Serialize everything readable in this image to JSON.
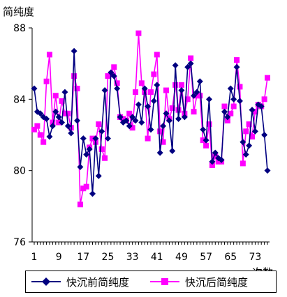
{
  "chart_data": {
    "type": "line",
    "ylabel": "简纯度",
    "xlabel": "次数",
    "ylim": [
      76,
      88
    ],
    "yticks": [
      76,
      80,
      84,
      88
    ],
    "xticks": [
      1,
      9,
      17,
      25,
      33,
      41,
      49,
      57,
      65,
      73
    ],
    "grid": false,
    "legend_position": "bottom",
    "x": [
      1,
      2,
      3,
      4,
      5,
      6,
      7,
      8,
      9,
      10,
      11,
      12,
      13,
      14,
      15,
      16,
      17,
      18,
      19,
      20,
      21,
      22,
      23,
      24,
      25,
      26,
      27,
      28,
      29,
      30,
      31,
      32,
      33,
      34,
      35,
      36,
      37,
      38,
      39,
      40,
      41,
      42,
      43,
      44,
      45,
      46,
      47,
      48,
      49,
      50,
      51,
      52,
      53,
      54,
      55,
      56,
      57,
      58,
      59,
      60,
      61,
      62,
      63,
      64,
      65,
      66,
      67,
      68,
      69,
      70,
      71,
      72,
      73,
      74,
      75,
      76,
      77
    ],
    "series": [
      {
        "name": "快沉前简纯度",
        "color": "#000080",
        "marker": "diamond",
        "values": [
          84.6,
          83.3,
          83.2,
          83.0,
          82.9,
          81.9,
          82.5,
          83.3,
          83.0,
          82.7,
          84.4,
          82.5,
          82.1,
          86.7,
          82.8,
          80.2,
          81.8,
          80.9,
          81.2,
          78.7,
          81.8,
          79.7,
          82.2,
          84.5,
          81.8,
          85.5,
          85.3,
          84.6,
          83.0,
          82.7,
          82.8,
          82.5,
          83.0,
          82.8,
          83.7,
          82.7,
          84.6,
          83.6,
          82.3,
          83.9,
          84.8,
          81.0,
          82.5,
          83.2,
          82.8,
          81.1,
          85.9,
          82.9,
          84.5,
          83.0,
          85.8,
          86.0,
          84.2,
          84.4,
          85.0,
          82.3,
          81.7,
          84.0,
          80.5,
          81.0,
          80.7,
          80.6,
          83.3,
          83.0,
          84.6,
          84.0,
          85.8,
          83.9,
          81.6,
          80.9,
          81.4,
          83.4,
          82.2,
          83.7,
          83.6,
          82.0,
          80.0
        ]
      },
      {
        "name": "快沉后简纯度",
        "color": "#FF00FF",
        "marker": "square",
        "values": [
          82.3,
          82.5,
          82.0,
          81.6,
          85.0,
          86.5,
          82.7,
          84.2,
          82.7,
          83.9,
          83.2,
          83.2,
          82.4,
          85.3,
          84.6,
          78.1,
          79.0,
          79.1,
          81.3,
          81.8,
          81.6,
          82.6,
          81.2,
          80.7,
          85.3,
          85.4,
          85.8,
          84.9,
          83.0,
          82.9,
          82.8,
          83.2,
          82.4,
          84.4,
          87.7,
          84.9,
          84.4,
          81.8,
          84.4,
          85.4,
          86.5,
          82.2,
          81.6,
          84.5,
          82.9,
          83.5,
          84.8,
          83.4,
          84.8,
          83.2,
          84.0,
          86.3,
          83.3,
          84.2,
          84.2,
          81.7,
          81.4,
          82.6,
          80.3,
          80.8,
          80.5,
          80.5,
          83.6,
          82.8,
          83.2,
          83.6,
          86.2,
          84.7,
          80.4,
          82.2,
          82.6,
          81.9,
          83.3,
          83.7,
          83.6,
          84.0,
          85.2
        ]
      }
    ]
  }
}
